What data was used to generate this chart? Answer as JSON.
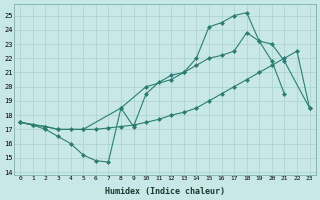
{
  "bg_color": "#c8e8e8",
  "line_color": "#2d7d6e",
  "grid_color": "#a8d0d0",
  "xlabel": "Humidex (Indice chaleur)",
  "xlim": [
    -0.5,
    23.5
  ],
  "ylim": [
    13.8,
    25.8
  ],
  "xticks": [
    0,
    1,
    2,
    3,
    4,
    5,
    6,
    7,
    8,
    9,
    10,
    11,
    12,
    13,
    14,
    15,
    16,
    17,
    18,
    19,
    20,
    21,
    22,
    23
  ],
  "yticks": [
    14,
    15,
    16,
    17,
    18,
    19,
    20,
    21,
    22,
    23,
    24,
    25
  ],
  "line1_x": [
    0,
    1,
    2,
    3,
    4,
    5,
    6,
    7,
    8,
    9,
    10,
    11,
    12,
    13,
    14,
    15,
    16,
    17,
    18,
    19,
    20,
    21
  ],
  "line1_y": [
    17.5,
    17.3,
    17.0,
    16.5,
    16.0,
    15.2,
    14.8,
    14.7,
    18.5,
    17.2,
    19.5,
    20.3,
    20.8,
    21.0,
    21.5,
    22.0,
    22.2,
    22.5,
    23.8,
    23.2,
    21.8,
    19.5
  ],
  "line2_x": [
    0,
    1,
    2,
    3,
    4,
    5,
    6,
    7,
    8,
    9,
    10,
    11,
    12,
    13,
    14,
    15,
    16,
    17,
    18,
    19,
    20,
    21,
    22,
    23
  ],
  "line2_y": [
    17.5,
    17.3,
    17.2,
    17.0,
    17.0,
    17.0,
    17.0,
    17.1,
    17.2,
    17.3,
    17.5,
    17.7,
    18.0,
    18.2,
    18.5,
    19.0,
    19.5,
    20.0,
    20.5,
    21.0,
    21.5,
    22.0,
    22.5,
    18.5
  ],
  "line3_x": [
    0,
    2,
    3,
    5,
    8,
    10,
    12,
    13,
    14,
    15,
    16,
    17,
    18,
    19,
    20,
    21,
    23
  ],
  "line3_y": [
    17.5,
    17.2,
    17.0,
    17.0,
    18.5,
    20.0,
    20.5,
    21.0,
    22.0,
    24.2,
    24.5,
    25.0,
    25.2,
    23.2,
    23.0,
    21.8,
    18.5
  ]
}
